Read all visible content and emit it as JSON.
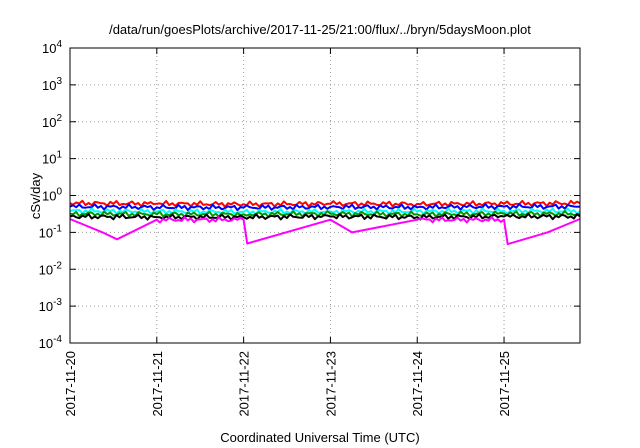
{
  "chart_data": {
    "type": "line",
    "title": "/data/run/goesPlots/archive/2017-11-25/21:00/flux/../bryn/5daysMoon.plot",
    "xlabel": "Coordinated Universal Time (UTC)",
    "ylabel": "cSv/day",
    "yscale": "log",
    "ylim": [
      0.0001,
      10000
    ],
    "y_ticks": [
      {
        "value": 0.0001,
        "base": "10",
        "exp": "-4"
      },
      {
        "value": 0.001,
        "base": "10",
        "exp": "-3"
      },
      {
        "value": 0.01,
        "base": "10",
        "exp": "-2"
      },
      {
        "value": 0.1,
        "base": "10",
        "exp": "-1"
      },
      {
        "value": 1,
        "base": "10",
        "exp": "0"
      },
      {
        "value": 10,
        "base": "10",
        "exp": "1"
      },
      {
        "value": 100,
        "base": "10",
        "exp": "2"
      },
      {
        "value": 1000,
        "base": "10",
        "exp": "3"
      },
      {
        "value": 10000,
        "base": "10",
        "exp": "4"
      }
    ],
    "xlim": [
      "2017-11-20T00:00",
      "2017-11-25T21:00"
    ],
    "x_ticks": [
      "2017-11-20",
      "2017-11-21",
      "2017-11-22",
      "2017-11-23",
      "2017-11-24",
      "2017-11-25"
    ],
    "grid": true,
    "series": [
      {
        "color": "#ff0000",
        "x": [
          "2017-11-20T00:00",
          "2017-11-21T00:00",
          "2017-11-22T00:00",
          "2017-11-23T00:00",
          "2017-11-24T00:00",
          "2017-11-25T00:00",
          "2017-11-25T21:00"
        ],
        "values": [
          0.62,
          0.6,
          0.58,
          0.6,
          0.59,
          0.6,
          0.62
        ]
      },
      {
        "color": "#0000ff",
        "x": [
          "2017-11-20T00:00",
          "2017-11-21T00:00",
          "2017-11-22T00:00",
          "2017-11-23T00:00",
          "2017-11-24T00:00",
          "2017-11-25T00:00",
          "2017-11-25T21:00"
        ],
        "values": [
          0.5,
          0.48,
          0.47,
          0.49,
          0.48,
          0.5,
          0.5
        ]
      },
      {
        "color": "#00ffff",
        "x": [
          "2017-11-20T00:00",
          "2017-11-21T00:00",
          "2017-11-22T00:00",
          "2017-11-23T00:00",
          "2017-11-24T00:00",
          "2017-11-25T00:00",
          "2017-11-25T21:00"
        ],
        "values": [
          0.38,
          0.37,
          0.36,
          0.37,
          0.37,
          0.38,
          0.38
        ]
      },
      {
        "color": "#009900",
        "x": [
          "2017-11-20T00:00",
          "2017-11-21T00:00",
          "2017-11-22T00:00",
          "2017-11-23T00:00",
          "2017-11-24T00:00",
          "2017-11-25T00:00",
          "2017-11-25T21:00"
        ],
        "values": [
          0.32,
          0.31,
          0.31,
          0.32,
          0.31,
          0.32,
          0.32
        ]
      },
      {
        "color": "#000000",
        "x": [
          "2017-11-20T00:00",
          "2017-11-21T00:00",
          "2017-11-22T00:00",
          "2017-11-23T00:00",
          "2017-11-24T00:00",
          "2017-11-25T00:00",
          "2017-11-25T21:00"
        ],
        "values": [
          0.27,
          0.26,
          0.26,
          0.27,
          0.26,
          0.27,
          0.27
        ]
      },
      {
        "color": "#ff00ff",
        "x": [
          "2017-11-20T00:00",
          "2017-11-20T09:00",
          "2017-11-20T13:00",
          "2017-11-21T00:00",
          "2017-11-22T00:00",
          "2017-11-22T01:00",
          "2017-11-23T00:00",
          "2017-11-23T06:00",
          "2017-11-24T00:00",
          "2017-11-25T00:00",
          "2017-11-25T01:00",
          "2017-11-25T12:00",
          "2017-11-25T21:00"
        ],
        "values": [
          0.23,
          0.1,
          0.065,
          0.22,
          0.22,
          0.05,
          0.22,
          0.1,
          0.22,
          0.22,
          0.048,
          0.1,
          0.23
        ]
      }
    ]
  }
}
